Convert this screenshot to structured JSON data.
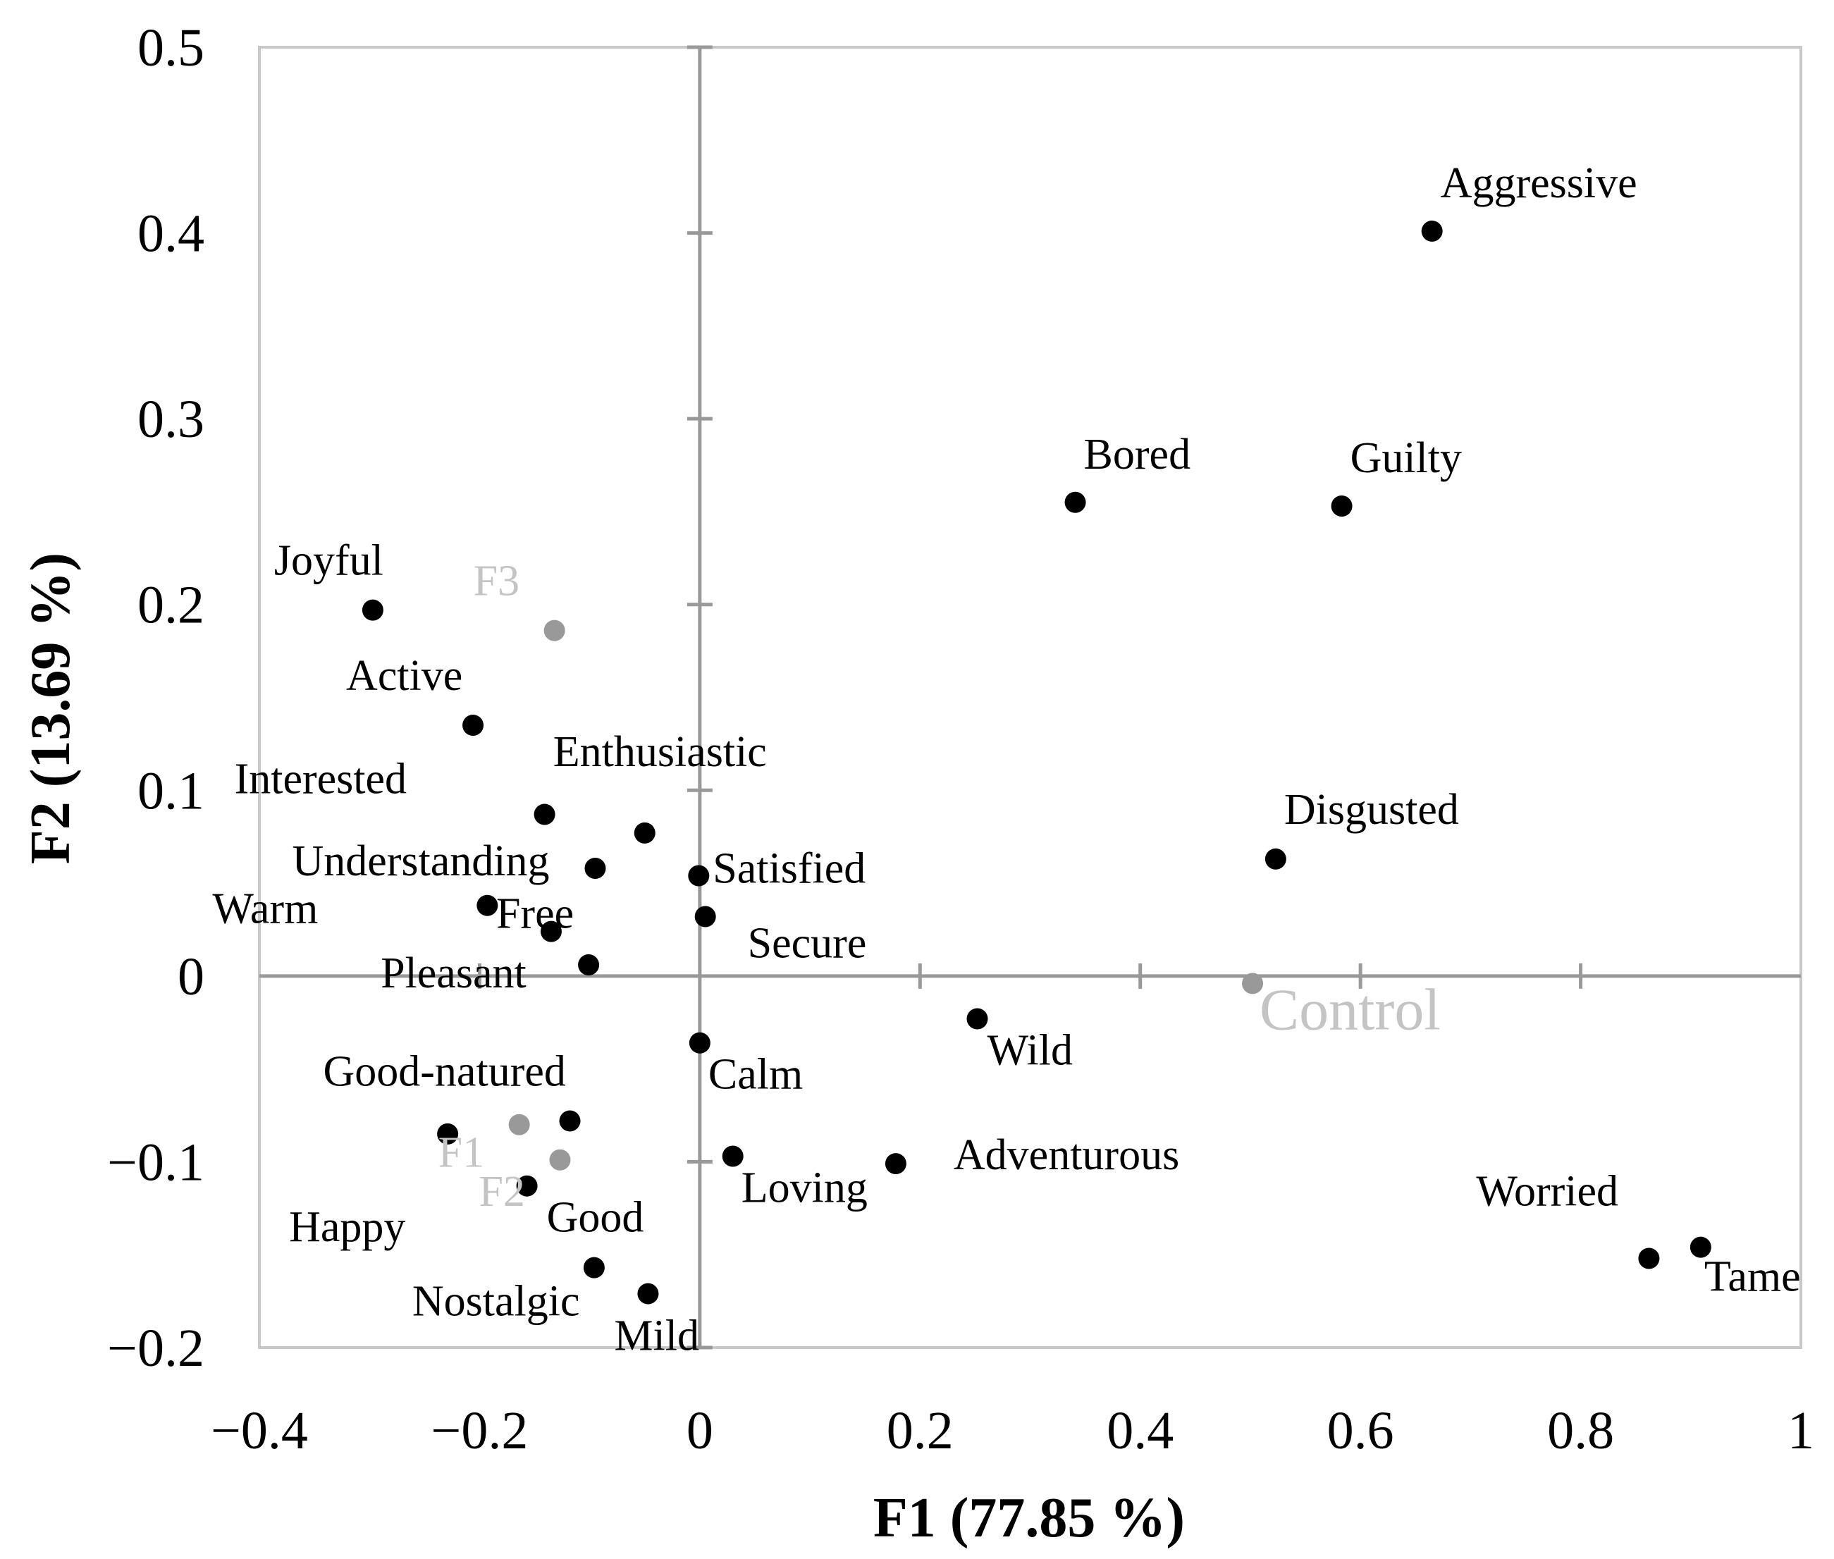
{
  "chart_data": {
    "type": "scatter",
    "title": "",
    "xlabel": "F1 (77.85 %)",
    "ylabel": "F2 (13.69 %)",
    "xlim": [
      -0.4,
      1.0
    ],
    "ylim": [
      -0.2,
      0.5
    ],
    "xticks": [
      -0.4,
      -0.2,
      0,
      0.2,
      0.4,
      0.6,
      0.8,
      1.0
    ],
    "xtick_labels": [
      "−0.4",
      "−0.2",
      "0",
      "0.2",
      "0.4",
      "0.6",
      "0.8",
      "1"
    ],
    "yticks": [
      -0.2,
      -0.1,
      0,
      0.1,
      0.2,
      0.3,
      0.4,
      0.5
    ],
    "ytick_labels": [
      "−0.2",
      "−0.1",
      "0",
      "0.1",
      "0.2",
      "0.3",
      "0.4",
      "0.5"
    ],
    "grid": false,
    "colors": {
      "attributes": "#000000",
      "products": "#999999",
      "product_labels": "#c4c4c4",
      "axes": "#999999",
      "frame": "#c8c8c8"
    },
    "series": [
      {
        "name": "attributes",
        "points": [
          {
            "label": "Aggressive",
            "x": 0.665,
            "y": 0.401
          },
          {
            "label": "Bored",
            "x": 0.341,
            "y": 0.255
          },
          {
            "label": "Guilty",
            "x": 0.583,
            "y": 0.253
          },
          {
            "label": "Joyful",
            "x": -0.297,
            "y": 0.197
          },
          {
            "label": "Active",
            "x": -0.206,
            "y": 0.135
          },
          {
            "label": "Interested",
            "x": -0.141,
            "y": 0.087
          },
          {
            "label": "Enthusiastic",
            "x": -0.05,
            "y": 0.077
          },
          {
            "label": "Understanding",
            "x": -0.095,
            "y": 0.058
          },
          {
            "label": "Satisfied",
            "x": -0.001,
            "y": 0.054
          },
          {
            "label": "Disgusted",
            "x": 0.523,
            "y": 0.063
          },
          {
            "label": "Warm",
            "x": -0.193,
            "y": 0.038
          },
          {
            "label": "Free",
            "x": -0.135,
            "y": 0.024
          },
          {
            "label": "Secure",
            "x": 0.005,
            "y": 0.032
          },
          {
            "label": "Pleasant",
            "x": -0.101,
            "y": 0.006
          },
          {
            "label": "Calm",
            "x": 0.0,
            "y": -0.036
          },
          {
            "label": "Wild",
            "x": 0.252,
            "y": -0.023
          },
          {
            "label": "Good-natured",
            "x": -0.118,
            "y": -0.078
          },
          {
            "label": "Happy",
            "x": -0.229,
            "y": -0.085
          },
          {
            "label": "Good",
            "x": -0.157,
            "y": -0.113
          },
          {
            "label": "Loving",
            "x": 0.03,
            "y": -0.097
          },
          {
            "label": "Adventurous",
            "x": 0.178,
            "y": -0.101
          },
          {
            "label": "Nostalgic",
            "x": -0.096,
            "y": -0.157
          },
          {
            "label": "Mild",
            "x": -0.047,
            "y": -0.171
          },
          {
            "label": "Worried",
            "x": 0.862,
            "y": -0.152
          },
          {
            "label": "Tame",
            "x": 0.909,
            "y": -0.146
          }
        ]
      },
      {
        "name": "products",
        "points": [
          {
            "label": "F3",
            "x": -0.132,
            "y": 0.186
          },
          {
            "label": "F1",
            "x": -0.164,
            "y": -0.08
          },
          {
            "label": "F2",
            "x": -0.127,
            "y": -0.099
          },
          {
            "label": "Control",
            "x": 0.502,
            "y": -0.004
          }
        ]
      }
    ]
  }
}
